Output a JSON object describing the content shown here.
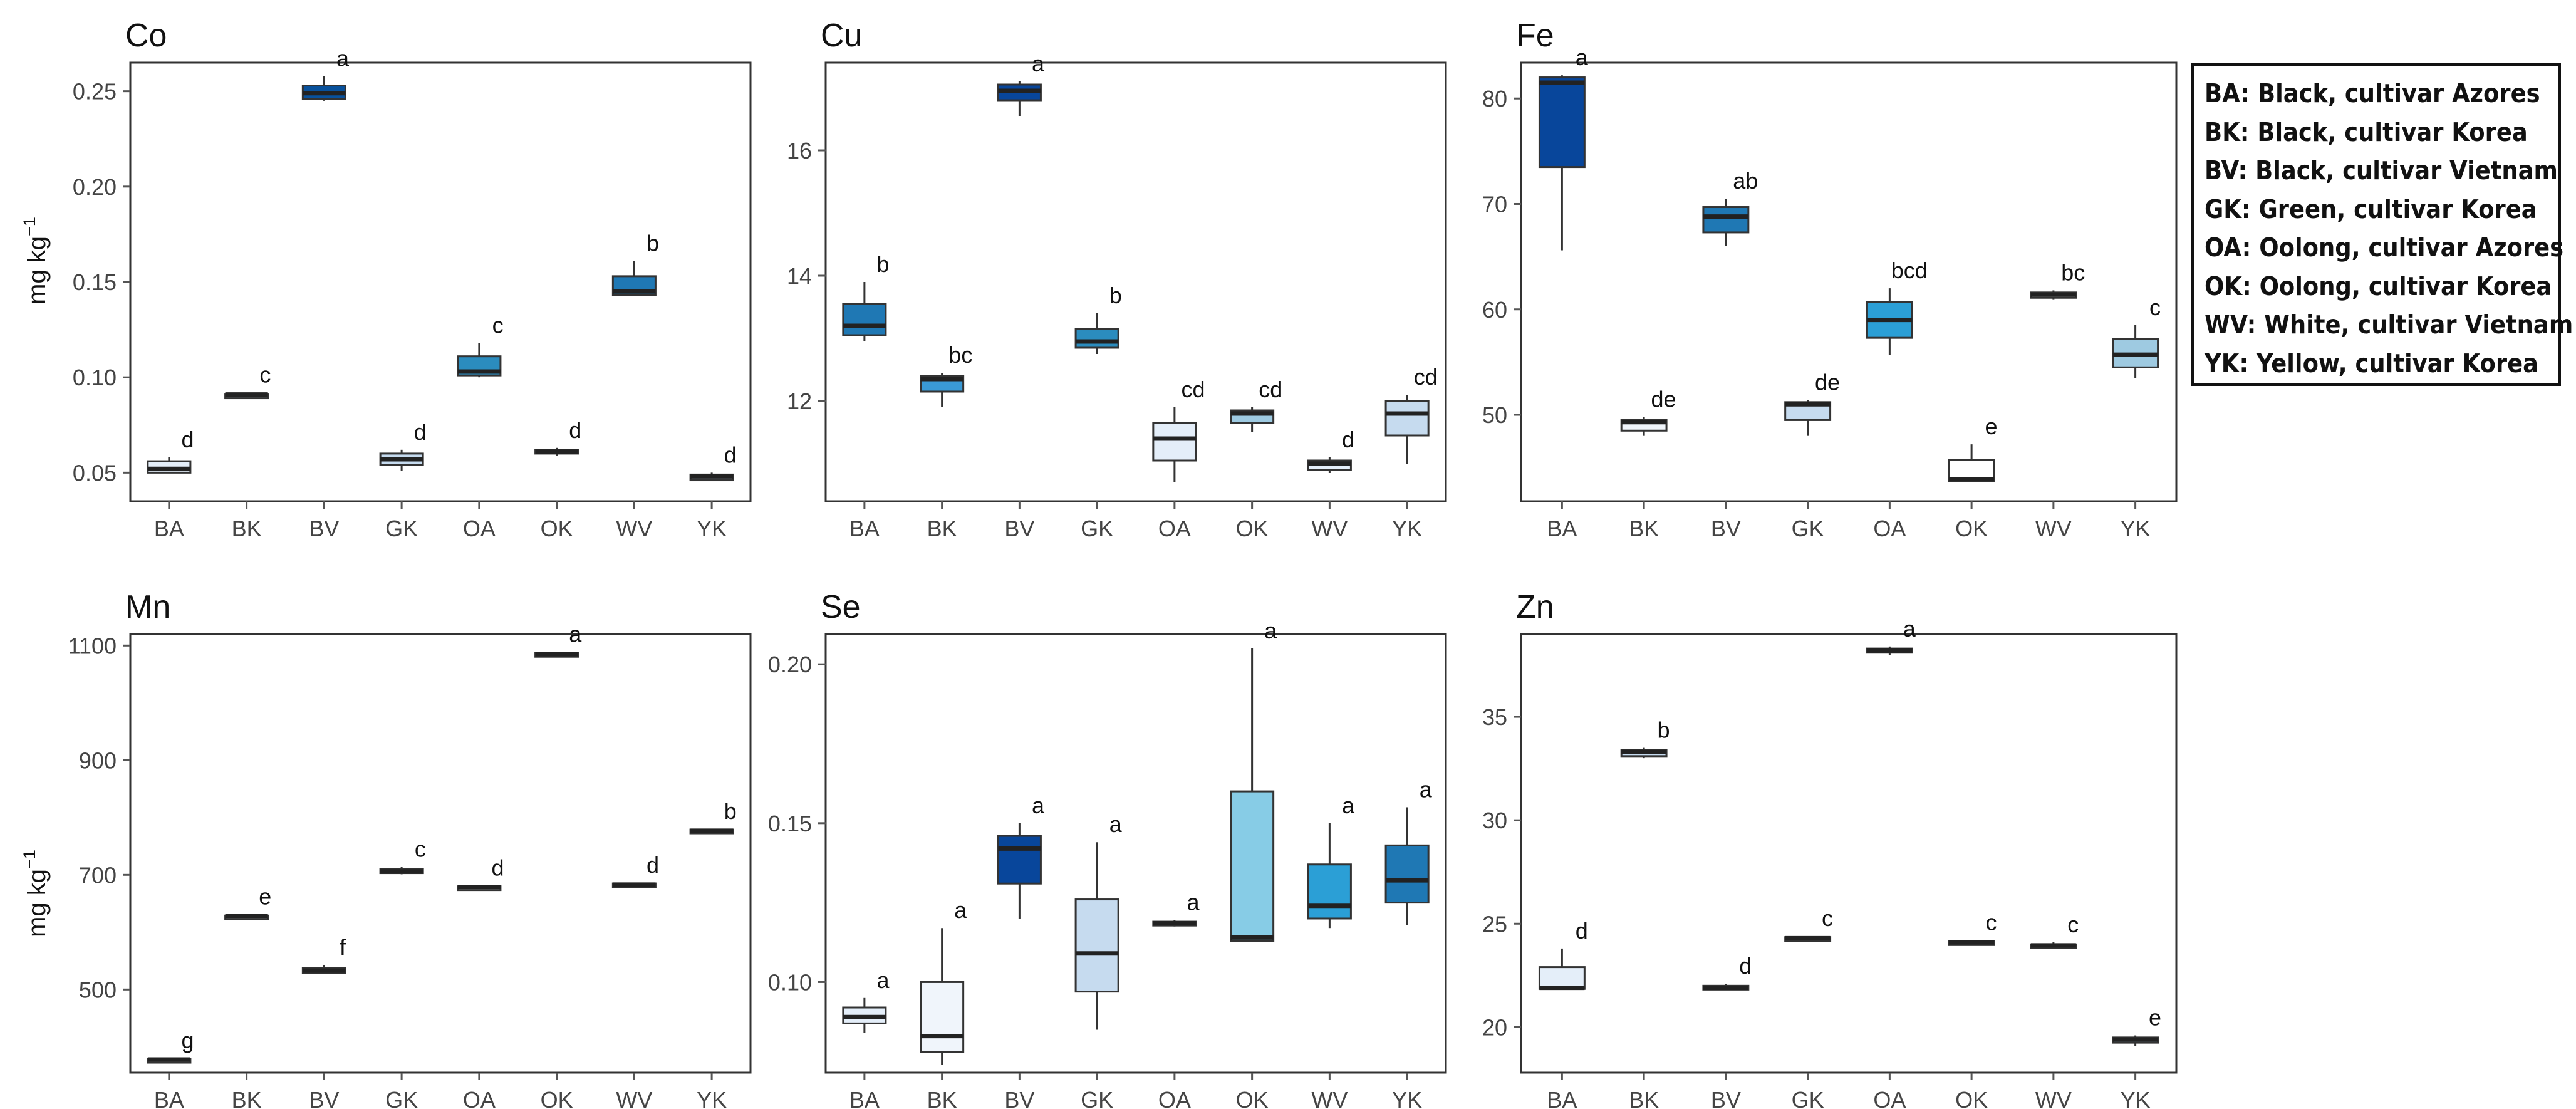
{
  "figure": {
    "y_axis_unit": "mg kg",
    "y_axis_unit_superscript": "−1",
    "legend": [
      "BA: Black, cultivar Azores",
      "BK: Black, cultivar Korea",
      "BV: Black, cultivar Vietnam",
      "GK: Green, cultivar Korea",
      "OA: Oolong, cultivar Azores",
      "OK: Oolong, cultivar Korea",
      "WV: White, cultivar Vietnam",
      "YK: Yellow, cultivar Korea"
    ]
  },
  "chart_data": [
    {
      "type": "box",
      "title": "Co",
      "ylabel": "mg kg−1",
      "categories": [
        "BA",
        "BK",
        "BV",
        "GK",
        "OA",
        "OK",
        "WV",
        "YK"
      ],
      "ylim": [
        0.035,
        0.265
      ],
      "yticks": [
        0.05,
        0.1,
        0.15,
        0.2,
        0.25
      ],
      "ytick_labels": [
        "0.05",
        "0.10",
        "0.15",
        "0.20",
        "0.25"
      ],
      "boxes": [
        {
          "min": 0.05,
          "q1": 0.05,
          "median": 0.052,
          "q3": 0.056,
          "max": 0.058,
          "letter": "d",
          "color": "#e4eef9"
        },
        {
          "min": 0.09,
          "q1": 0.09,
          "median": 0.091,
          "q3": 0.091,
          "max": 0.092,
          "letter": "c",
          "color": "#c6dbef"
        },
        {
          "min": 0.245,
          "q1": 0.246,
          "median": 0.249,
          "q3": 0.253,
          "max": 0.258,
          "letter": "a",
          "color": "#08519c"
        },
        {
          "min": 0.051,
          "q1": 0.054,
          "median": 0.057,
          "q3": 0.06,
          "max": 0.062,
          "letter": "d",
          "color": "#c6dbef"
        },
        {
          "min": 0.1,
          "q1": 0.101,
          "median": 0.103,
          "q3": 0.111,
          "max": 0.118,
          "letter": "c",
          "color": "#2b8cbe"
        },
        {
          "min": 0.059,
          "q1": 0.06,
          "median": 0.061,
          "q3": 0.062,
          "max": 0.063,
          "letter": "d",
          "color": "#c6dbef"
        },
        {
          "min": 0.143,
          "q1": 0.143,
          "median": 0.145,
          "q3": 0.153,
          "max": 0.161,
          "letter": "b",
          "color": "#1f78b4"
        },
        {
          "min": 0.046,
          "q1": 0.046,
          "median": 0.048,
          "q3": 0.049,
          "max": 0.05,
          "letter": "d",
          "color": "#c6dbef"
        }
      ]
    },
    {
      "type": "box",
      "title": "Cu",
      "ylabel": "",
      "categories": [
        "BA",
        "BK",
        "BV",
        "GK",
        "OA",
        "OK",
        "WV",
        "YK"
      ],
      "ylim": [
        10.4,
        17.4
      ],
      "yticks": [
        12,
        14,
        16
      ],
      "ytick_labels": [
        "12",
        "14",
        "16"
      ],
      "boxes": [
        {
          "min": 12.95,
          "q1": 13.05,
          "median": 13.2,
          "q3": 13.55,
          "max": 13.9,
          "letter": "b",
          "color": "#1f78b4"
        },
        {
          "min": 11.9,
          "q1": 12.15,
          "median": 12.35,
          "q3": 12.4,
          "max": 12.45,
          "letter": "bc",
          "color": "#3a9ad6"
        },
        {
          "min": 16.55,
          "q1": 16.8,
          "median": 16.95,
          "q3": 17.05,
          "max": 17.1,
          "letter": "a",
          "color": "#08469b"
        },
        {
          "min": 12.75,
          "q1": 12.85,
          "median": 12.95,
          "q3": 13.15,
          "max": 13.4,
          "letter": "b",
          "color": "#2b8cbe"
        },
        {
          "min": 10.7,
          "q1": 11.05,
          "median": 11.4,
          "q3": 11.65,
          "max": 11.9,
          "letter": "cd",
          "color": "#e4eef9"
        },
        {
          "min": 11.5,
          "q1": 11.65,
          "median": 11.8,
          "q3": 11.85,
          "max": 11.9,
          "letter": "cd",
          "color": "#9ecae1"
        },
        {
          "min": 10.85,
          "q1": 10.9,
          "median": 11.0,
          "q3": 11.05,
          "max": 11.1,
          "letter": "d",
          "color": "#e4eef9"
        },
        {
          "min": 11.0,
          "q1": 11.45,
          "median": 11.8,
          "q3": 12.0,
          "max": 12.1,
          "letter": "cd",
          "color": "#c6dbef"
        }
      ]
    },
    {
      "type": "box",
      "title": "Fe",
      "ylabel": "",
      "categories": [
        "BA",
        "BK",
        "BV",
        "GK",
        "OA",
        "OK",
        "WV",
        "YK"
      ],
      "ylim": [
        41.8,
        83.4
      ],
      "yticks": [
        50,
        60,
        70,
        80
      ],
      "ytick_labels": [
        "50",
        "60",
        "70",
        "80"
      ],
      "boxes": [
        {
          "min": 65.6,
          "q1": 73.5,
          "median": 81.5,
          "q3": 82.0,
          "max": 82.2,
          "letter": "a",
          "color": "#08469b"
        },
        {
          "min": 48.0,
          "q1": 48.5,
          "median": 49.3,
          "q3": 49.5,
          "max": 49.8,
          "letter": "de",
          "color": "#f0f5fb"
        },
        {
          "min": 66.0,
          "q1": 67.3,
          "median": 68.8,
          "q3": 69.7,
          "max": 70.5,
          "letter": "ab",
          "color": "#1f78b4"
        },
        {
          "min": 48.0,
          "q1": 49.5,
          "median": 51.0,
          "q3": 51.2,
          "max": 51.4,
          "letter": "de",
          "color": "#c6dbef"
        },
        {
          "min": 55.7,
          "q1": 57.3,
          "median": 59.0,
          "q3": 60.7,
          "max": 62.0,
          "letter": "bcd",
          "color": "#2b9fd6"
        },
        {
          "min": 43.6,
          "q1": 43.7,
          "median": 43.9,
          "q3": 45.7,
          "max": 47.2,
          "letter": "e",
          "color": "#ffffff"
        },
        {
          "min": 60.9,
          "q1": 61.1,
          "median": 61.4,
          "q3": 61.6,
          "max": 61.8,
          "letter": "bc",
          "color": "#f0f5fb"
        },
        {
          "min": 53.5,
          "q1": 54.5,
          "median": 55.7,
          "q3": 57.2,
          "max": 58.5,
          "letter": "c",
          "color": "#9ecae1"
        }
      ]
    },
    {
      "type": "box",
      "title": "Mn",
      "ylabel": "mg kg−1",
      "categories": [
        "BA",
        "BK",
        "BV",
        "GK",
        "OA",
        "OK",
        "WV",
        "YK"
      ],
      "ylim": [
        355,
        1120
      ],
      "yticks": [
        500,
        700,
        900,
        1100
      ],
      "ytick_labels": [
        "500",
        "700",
        "900",
        "1100"
      ],
      "boxes": [
        {
          "min": 374,
          "q1": 375,
          "median": 378,
          "q3": 379,
          "max": 380,
          "letter": "g",
          "color": "#f0f5fb"
        },
        {
          "min": 625,
          "q1": 626,
          "median": 628,
          "q3": 629,
          "max": 631,
          "letter": "e",
          "color": "#f0f5fb"
        },
        {
          "min": 527,
          "q1": 529,
          "median": 533,
          "q3": 537,
          "max": 543,
          "letter": "f",
          "color": "#f0f5fb"
        },
        {
          "min": 701,
          "q1": 703,
          "median": 706,
          "q3": 710,
          "max": 714,
          "letter": "c",
          "color": "#c6dbef"
        },
        {
          "min": 676,
          "q1": 677,
          "median": 679,
          "q3": 680,
          "max": 681,
          "letter": "d",
          "color": "#f0f5fb"
        },
        {
          "min": 1082,
          "q1": 1083,
          "median": 1085,
          "q3": 1087,
          "max": 1089,
          "letter": "a",
          "color": "#c6dbef"
        },
        {
          "min": 680,
          "q1": 681,
          "median": 683,
          "q3": 685,
          "max": 686,
          "letter": "d",
          "color": "#f0f5fb"
        },
        {
          "min": 774,
          "q1": 775,
          "median": 777,
          "q3": 779,
          "max": 780,
          "letter": "b",
          "color": "#c6dbef"
        }
      ]
    },
    {
      "type": "box",
      "title": "Se",
      "ylabel": "",
      "categories": [
        "BA",
        "BK",
        "BV",
        "GK",
        "OA",
        "OK",
        "WV",
        "YK"
      ],
      "ylim": [
        0.0715,
        0.2095
      ],
      "yticks": [
        0.1,
        0.15,
        0.2
      ],
      "ytick_labels": [
        "0.10",
        "0.15",
        "0.20"
      ],
      "boxes": [
        {
          "min": 0.084,
          "q1": 0.087,
          "median": 0.089,
          "q3": 0.092,
          "max": 0.095,
          "letter": "a",
          "color": "#e4eef9"
        },
        {
          "min": 0.074,
          "q1": 0.078,
          "median": 0.083,
          "q3": 0.1,
          "max": 0.117,
          "letter": "a",
          "color": "#f0f5fb"
        },
        {
          "min": 0.12,
          "q1": 0.131,
          "median": 0.142,
          "q3": 0.146,
          "max": 0.15,
          "letter": "a",
          "color": "#08469b"
        },
        {
          "min": 0.085,
          "q1": 0.097,
          "median": 0.109,
          "q3": 0.126,
          "max": 0.144,
          "letter": "a",
          "color": "#c6dbef"
        },
        {
          "min": 0.1175,
          "q1": 0.1178,
          "median": 0.1185,
          "q3": 0.119,
          "max": 0.1195,
          "letter": "a",
          "color": "#c6dbef"
        },
        {
          "min": 0.113,
          "q1": 0.113,
          "median": 0.114,
          "q3": 0.16,
          "max": 0.205,
          "letter": "a",
          "color": "#87cce6"
        },
        {
          "min": 0.117,
          "q1": 0.12,
          "median": 0.124,
          "q3": 0.137,
          "max": 0.15,
          "letter": "a",
          "color": "#2b9fd6"
        },
        {
          "min": 0.118,
          "q1": 0.125,
          "median": 0.132,
          "q3": 0.143,
          "max": 0.155,
          "letter": "a",
          "color": "#1f78b4"
        }
      ]
    },
    {
      "type": "box",
      "title": "Zn",
      "ylabel": "",
      "categories": [
        "BA",
        "BK",
        "BV",
        "GK",
        "OA",
        "OK",
        "WV",
        "YK"
      ],
      "ylim": [
        17.8,
        39.0
      ],
      "yticks": [
        20,
        25,
        30,
        35
      ],
      "ytick_labels": [
        "20",
        "25",
        "30",
        "35"
      ],
      "boxes": [
        {
          "min": 21.8,
          "q1": 21.85,
          "median": 21.9,
          "q3": 22.9,
          "max": 23.8,
          "letter": "d",
          "color": "#e4eef9"
        },
        {
          "min": 33.0,
          "q1": 33.1,
          "median": 33.3,
          "q3": 33.4,
          "max": 33.5,
          "letter": "b",
          "color": "#c6dbef"
        },
        {
          "min": 21.8,
          "q1": 21.85,
          "median": 21.9,
          "q3": 22.0,
          "max": 22.1,
          "letter": "d",
          "color": "#c6dbef"
        },
        {
          "min": 24.2,
          "q1": 24.25,
          "median": 24.3,
          "q3": 24.35,
          "max": 24.4,
          "letter": "c",
          "color": "#c6dbef"
        },
        {
          "min": 38.0,
          "q1": 38.1,
          "median": 38.2,
          "q3": 38.3,
          "max": 38.4,
          "letter": "a",
          "color": "#c6dbef"
        },
        {
          "min": 24.0,
          "q1": 24.05,
          "median": 24.1,
          "q3": 24.15,
          "max": 24.2,
          "letter": "c",
          "color": "#c6dbef"
        },
        {
          "min": 23.8,
          "q1": 23.85,
          "median": 23.95,
          "q3": 24.0,
          "max": 24.1,
          "letter": "c",
          "color": "#c6dbef"
        },
        {
          "min": 19.1,
          "q1": 19.25,
          "median": 19.4,
          "q3": 19.5,
          "max": 19.6,
          "letter": "e",
          "color": "#9ecae1"
        }
      ]
    }
  ]
}
